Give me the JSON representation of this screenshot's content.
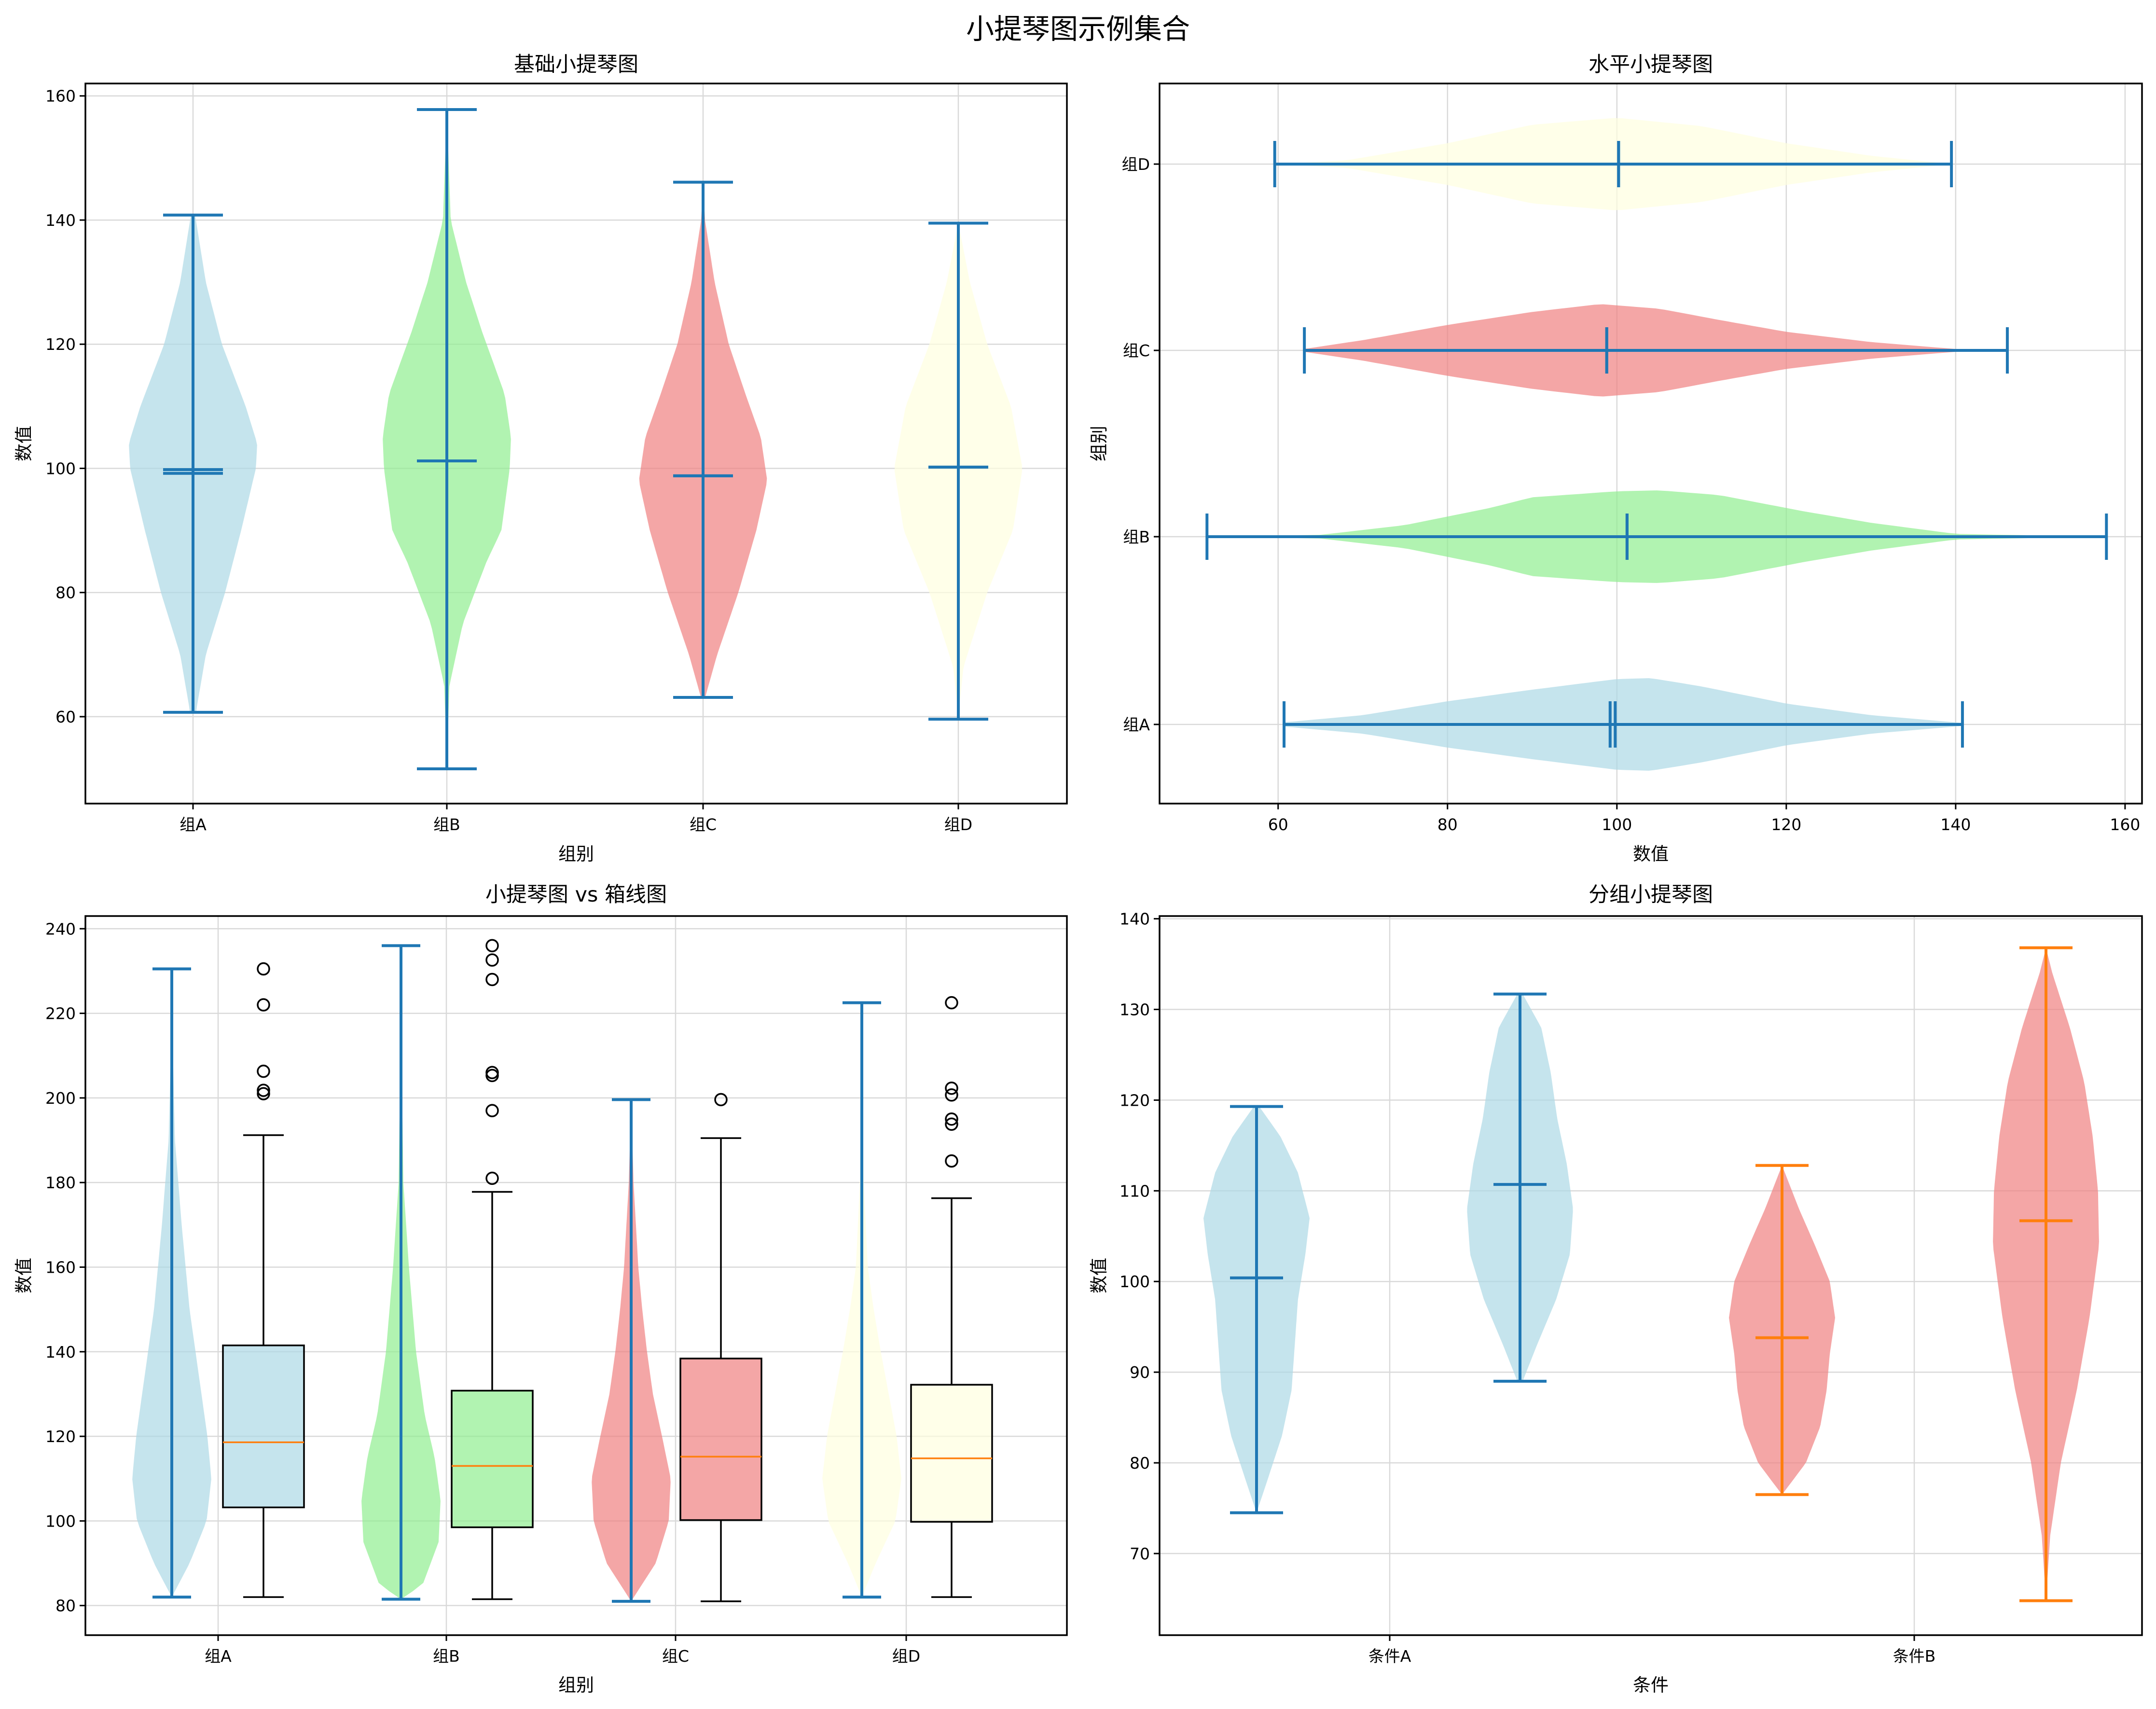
{
  "suptitle": "小提琴图示例集合",
  "colors": {
    "group_fills": [
      "#add8e6",
      "#90ee90",
      "#f08080",
      "#ffffe0"
    ],
    "line_blue": "#1f77b4",
    "line_orange": "#ff7f0e",
    "box_edge": "#000000",
    "grid": "#d9d9d9"
  },
  "chart_data": [
    {
      "type": "violin",
      "title": "基础小提琴图",
      "orientation": "vertical",
      "xlabel": "组别",
      "ylabel": "数值",
      "ylim": [
        46,
        162
      ],
      "yticks": [
        60,
        80,
        100,
        120,
        140,
        160
      ],
      "categories": [
        "组A",
        "组B",
        "组C",
        "组D"
      ],
      "groups": [
        {
          "name": "组A",
          "min": 60.7,
          "max": 140.8,
          "mean": 99.8,
          "median": 99.2,
          "density_values": [
            61,
            70,
            80,
            90,
            100,
            104,
            110,
            120,
            130,
            141
          ],
          "density": [
            0.05,
            0.2,
            0.5,
            0.75,
            0.98,
            1.0,
            0.82,
            0.45,
            0.2,
            0.03
          ]
        },
        {
          "name": "组B",
          "min": 51.6,
          "max": 157.8,
          "mean": 101.2,
          "median": 101.2,
          "density_values": [
            52,
            65,
            75,
            85,
            90,
            100,
            105,
            112,
            122,
            130,
            140,
            158
          ],
          "density": [
            0.0,
            0.04,
            0.25,
            0.62,
            0.85,
            0.98,
            1.0,
            0.9,
            0.55,
            0.3,
            0.06,
            0.0
          ]
        },
        {
          "name": "组C",
          "min": 63.1,
          "max": 146.1,
          "mean": 98.8,
          "median": 98.8,
          "density_values": [
            63,
            70,
            80,
            90,
            98,
            105,
            112,
            120,
            130,
            140,
            146
          ],
          "density": [
            0.03,
            0.22,
            0.55,
            0.83,
            1.0,
            0.9,
            0.66,
            0.4,
            0.18,
            0.03,
            0.0
          ]
        },
        {
          "name": "组D",
          "min": 59.6,
          "max": 139.5,
          "mean": 100.2,
          "median": 100.2,
          "density_values": [
            60,
            68,
            80,
            90,
            100,
            110,
            120,
            130,
            139.5
          ],
          "density": [
            0.0,
            0.08,
            0.45,
            0.85,
            1.0,
            0.82,
            0.45,
            0.18,
            0.0
          ]
        }
      ]
    },
    {
      "type": "violin",
      "title": "水平小提琴图",
      "orientation": "horizontal",
      "xlabel": "数值",
      "ylabel": "组别",
      "xlim": [
        46,
        162
      ],
      "xticks": [
        60,
        80,
        100,
        120,
        140,
        160
      ],
      "categories": [
        "组A",
        "组B",
        "组C",
        "组D"
      ],
      "groups": [
        {
          "name": "组A",
          "min": 60.7,
          "max": 140.8,
          "mean": 99.8,
          "median": 99.2,
          "density_values": [
            61,
            70,
            80,
            90,
            100,
            104,
            110,
            120,
            130,
            141
          ],
          "density": [
            0.05,
            0.2,
            0.5,
            0.75,
            0.98,
            1.0,
            0.82,
            0.45,
            0.2,
            0.03
          ]
        },
        {
          "name": "组B",
          "min": 51.6,
          "max": 157.8,
          "mean": 101.2,
          "median": 101.2,
          "density_values": [
            52,
            65,
            75,
            85,
            90,
            100,
            105,
            112,
            122,
            130,
            140,
            158
          ],
          "density": [
            0.0,
            0.04,
            0.25,
            0.62,
            0.85,
            0.98,
            1.0,
            0.9,
            0.55,
            0.3,
            0.06,
            0.0
          ]
        },
        {
          "name": "组C",
          "min": 63.1,
          "max": 146.1,
          "mean": 98.8,
          "median": 98.8,
          "density_values": [
            63,
            70,
            80,
            90,
            98,
            105,
            112,
            120,
            130,
            140,
            146
          ],
          "density": [
            0.03,
            0.22,
            0.55,
            0.83,
            1.0,
            0.9,
            0.66,
            0.4,
            0.18,
            0.03,
            0.0
          ]
        },
        {
          "name": "组D",
          "min": 59.6,
          "max": 139.5,
          "mean": 100.2,
          "median": 100.2,
          "density_values": [
            60,
            68,
            80,
            90,
            100,
            110,
            120,
            130,
            139.5
          ],
          "density": [
            0.0,
            0.08,
            0.45,
            0.85,
            1.0,
            0.82,
            0.45,
            0.18,
            0.0
          ]
        }
      ]
    },
    {
      "type": "violin+box",
      "title": "小提琴图 vs 箱线图",
      "xlabel": "组别",
      "ylabel": "数值",
      "ylim": [
        73,
        243
      ],
      "yticks": [
        80,
        100,
        120,
        140,
        160,
        180,
        200,
        220,
        240
      ],
      "categories": [
        "组A",
        "组B",
        "组C",
        "组D"
      ],
      "violins": [
        {
          "name": "组A",
          "min": 82,
          "max": 230.5,
          "density_values": [
            82,
            90,
            100,
            110,
            120,
            130,
            140,
            150,
            170,
            190,
            210,
            230
          ],
          "density": [
            0.0,
            0.45,
            0.88,
            1.0,
            0.9,
            0.75,
            0.6,
            0.45,
            0.25,
            0.08,
            0.03,
            0.0
          ]
        },
        {
          "name": "组B",
          "min": 81.5,
          "max": 236,
          "density_values": [
            81.5,
            85,
            95,
            105,
            115,
            125,
            140,
            160,
            180,
            200,
            220,
            236
          ],
          "density": [
            0.0,
            0.55,
            0.95,
            1.0,
            0.85,
            0.6,
            0.38,
            0.2,
            0.06,
            0.03,
            0.02,
            0.0
          ]
        },
        {
          "name": "组C",
          "min": 81,
          "max": 199.6,
          "density_values": [
            81,
            90,
            100,
            110,
            120,
            130,
            140,
            150,
            160,
            180,
            199.6
          ],
          "density": [
            0.0,
            0.62,
            0.95,
            1.0,
            0.78,
            0.55,
            0.4,
            0.28,
            0.18,
            0.06,
            0.0
          ]
        },
        {
          "name": "组D",
          "min": 82,
          "max": 222.5,
          "density_values": [
            82,
            90,
            100,
            110,
            120,
            130,
            140,
            150,
            160,
            180,
            200,
            222.5
          ],
          "density": [
            0.0,
            0.35,
            0.85,
            1.0,
            0.88,
            0.68,
            0.48,
            0.3,
            0.15,
            0.05,
            0.02,
            0.0
          ]
        }
      ],
      "boxes": [
        {
          "name": "组A",
          "whislo": 82,
          "q1": 103.2,
          "median": 118.6,
          "q3": 141.5,
          "whishi": 191.2,
          "fliers": [
            201,
            201.8,
            206.3,
            222,
            230.5
          ]
        },
        {
          "name": "组B",
          "whislo": 81.5,
          "q1": 98.5,
          "median": 113,
          "q3": 130.8,
          "whishi": 177.8,
          "fliers": [
            181,
            197,
            205.3,
            206,
            228,
            232.6,
            236
          ]
        },
        {
          "name": "组C",
          "whislo": 81,
          "q1": 100.2,
          "median": 115.2,
          "q3": 138.4,
          "whishi": 190.5,
          "fliers": [
            199.6
          ]
        },
        {
          "name": "组D",
          "whislo": 82,
          "q1": 99.8,
          "median": 114.8,
          "q3": 132.2,
          "whishi": 176.3,
          "fliers": [
            185.1,
            193.8,
            195,
            200.7,
            202.3,
            222.5
          ]
        }
      ]
    },
    {
      "type": "violin",
      "title": "分组小提琴图",
      "orientation": "vertical",
      "xlabel": "条件",
      "ylabel": "数值",
      "ylim": [
        61,
        140.3
      ],
      "yticks": [
        70,
        80,
        90,
        100,
        110,
        120,
        130,
        140
      ],
      "categories": [
        "条件A",
        "条件B"
      ],
      "groups": [
        {
          "condition": "条件A",
          "min": 74.5,
          "max": 119.3,
          "mean": 100.4,
          "density_values": [
            74.5,
            78,
            83,
            88,
            93,
            98,
            103,
            107,
            112,
            116,
            119.3
          ],
          "density": [
            0.0,
            0.2,
            0.48,
            0.66,
            0.72,
            0.78,
            0.92,
            1.0,
            0.78,
            0.45,
            0.05
          ]
        },
        {
          "condition": "条件A",
          "min": 89,
          "max": 131.7,
          "mean": 110.7,
          "density_values": [
            89,
            93,
            98,
            103,
            108,
            113,
            118,
            123,
            128,
            131.7
          ],
          "density": [
            0.05,
            0.32,
            0.68,
            0.94,
            1.0,
            0.88,
            0.7,
            0.58,
            0.4,
            0.05
          ]
        },
        {
          "condition": "条件B",
          "min": 76.5,
          "max": 112.8,
          "mean": 93.8,
          "density_values": [
            76.5,
            80,
            84,
            88,
            92,
            96,
            100,
            104,
            108,
            112.8
          ],
          "density": [
            0.0,
            0.45,
            0.72,
            0.84,
            0.9,
            1.0,
            0.9,
            0.62,
            0.32,
            0.0
          ]
        },
        {
          "condition": "条件B",
          "min": 64.8,
          "max": 136.8,
          "mean": 106.7,
          "density_values": [
            64.8,
            72,
            80,
            88,
            96,
            104,
            110,
            116,
            122,
            128,
            134,
            136.8
          ],
          "density": [
            0.0,
            0.08,
            0.28,
            0.58,
            0.82,
            1.0,
            0.98,
            0.88,
            0.72,
            0.45,
            0.12,
            0.0
          ]
        }
      ]
    }
  ]
}
